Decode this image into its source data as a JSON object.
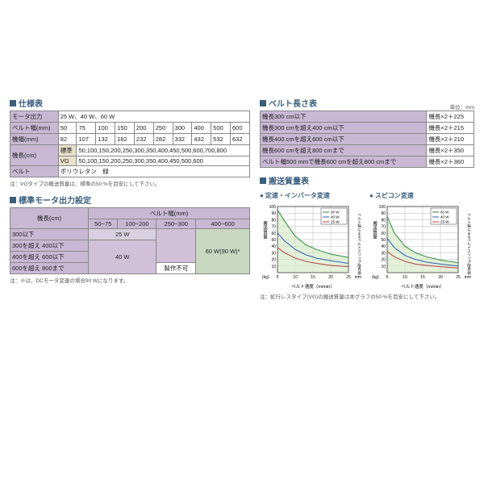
{
  "spec_table": {
    "title": "仕様表",
    "rows": [
      {
        "label": "モータ出力",
        "value": "25 W、40 W、60 W",
        "colspan": 10
      },
      {
        "label": "ベルト幅(mm)",
        "cells": [
          "50",
          "75",
          "100",
          "150",
          "200",
          "250",
          "300",
          "400",
          "500",
          "600"
        ]
      },
      {
        "label": "機幅(mm)",
        "cells": [
          "82",
          "107",
          "132",
          "182",
          "232",
          "282",
          "332",
          "432",
          "532",
          "632"
        ]
      }
    ],
    "length_label": "機長(cm)",
    "length_rows": [
      {
        "sub": "標準",
        "value": "50,100,150,200,250,300,350,400,450,500,600,700,800"
      },
      {
        "sub": "VG",
        "value": "50,100,150,200,250,300,350,400,450,500,600"
      }
    ],
    "belt_row": {
      "label": "ベルト",
      "value": "ポリウレタン　緑"
    },
    "note": "注：VGタイプの搬送質量は、標準の50 %を目安にして下さい。"
  },
  "belt_len": {
    "title": "ベルト長さ表",
    "unit": "単位：mm",
    "rows": [
      [
        "機長300 cm以下",
        "機長×2＋225"
      ],
      [
        "機長300 cmを超え400 cm以下",
        "機長×2＋215"
      ],
      [
        "機長400 cmを超え600 cm以下",
        "機長×2＋210"
      ],
      [
        "機長600 cmを超え800 cmまで",
        "機長×2＋350"
      ],
      [
        "ベルト幅500 mmで機長600 cmを超え800 cmまで",
        "機長×2＋360"
      ]
    ]
  },
  "motor": {
    "title": "標準モータ出力設定",
    "col_header": "ベルト幅(mm)",
    "row_header": "機長(cm)",
    "cols": [
      "50~75",
      "100~200",
      "250~300",
      "400~600"
    ],
    "rows": [
      "300以下",
      "300を超え 400以下",
      "400を超え 600以下",
      "600を超え 800まで"
    ],
    "v25": "25 W",
    "v40": "40 W",
    "v60": "60 W(90 W)*",
    "vx": "製作不可",
    "note": "注：※は、DCモータ変速の場合90 Wになります。"
  },
  "transport": {
    "title": "搬送質量表",
    "chart1": "定速・インバータ変速",
    "chart2": "スピコン変速",
    "xlabel": "ベルト速度（m/min）",
    "ylabel": "搬送質量",
    "yunit": "(kg)",
    "xticks": [
      "5",
      "10",
      "15",
      "20",
      "25"
    ],
    "yticks": [
      "10",
      "20",
      "30",
      "40",
      "50",
      "60",
      "70",
      "80",
      "90",
      "100"
    ],
    "legend": [
      "60 W",
      "40 W",
      "25 W"
    ],
    "colors": {
      "60": "#2e8b3e",
      "40": "#2e5fb8",
      "25": "#b83e3e",
      "grid": "#888",
      "fill": "#d0e8c0"
    },
    "right_label": "ベルト幅によるベルトスリップ限界値",
    "right_unit": "mm",
    "series": {
      "60": [
        [
          5,
          95
        ],
        [
          7,
          78
        ],
        [
          10,
          55
        ],
        [
          13,
          42
        ],
        [
          16,
          35
        ],
        [
          20,
          28
        ],
        [
          25,
          23
        ]
      ],
      "40": [
        [
          5,
          60
        ],
        [
          7,
          48
        ],
        [
          10,
          35
        ],
        [
          13,
          27
        ],
        [
          16,
          22
        ],
        [
          20,
          18
        ],
        [
          25,
          14
        ]
      ],
      "25": [
        [
          5,
          38
        ],
        [
          7,
          30
        ],
        [
          10,
          22
        ],
        [
          13,
          17
        ],
        [
          16,
          14
        ],
        [
          20,
          11
        ],
        [
          25,
          9
        ]
      ]
    },
    "series2": {
      "60": [
        [
          5,
          85
        ],
        [
          7,
          60
        ],
        [
          10,
          40
        ],
        [
          13,
          30
        ],
        [
          16,
          24
        ],
        [
          20,
          19
        ],
        [
          25,
          15
        ]
      ],
      "40": [
        [
          5,
          52
        ],
        [
          7,
          38
        ],
        [
          10,
          26
        ],
        [
          13,
          20
        ],
        [
          16,
          16
        ],
        [
          20,
          13
        ],
        [
          25,
          10
        ]
      ],
      "25": [
        [
          5,
          32
        ],
        [
          7,
          24
        ],
        [
          10,
          17
        ],
        [
          13,
          13
        ],
        [
          16,
          11
        ],
        [
          20,
          9
        ],
        [
          25,
          7
        ]
      ]
    },
    "note": "注：蛇行レスタイプ(VG)の搬送質量は本グラフの50 %を目安にして下さい。"
  }
}
